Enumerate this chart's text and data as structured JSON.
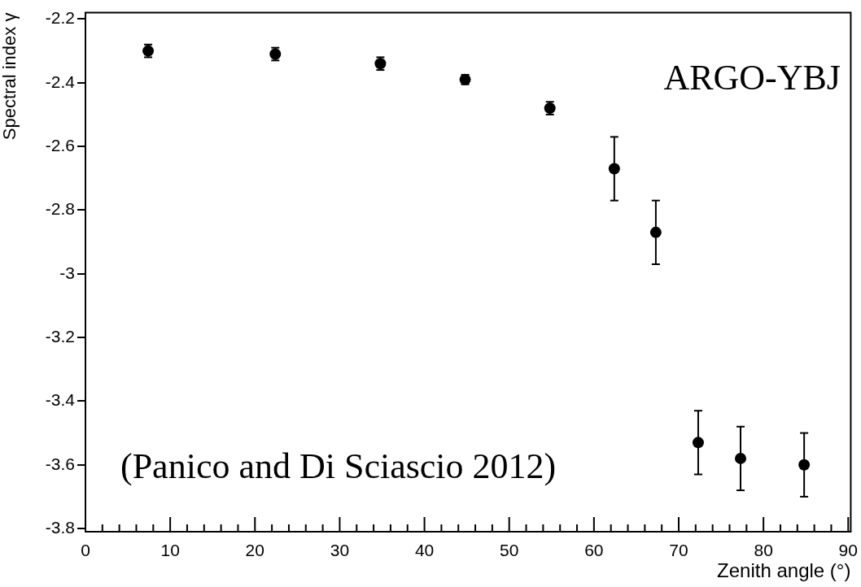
{
  "chart_data": {
    "type": "scatter",
    "xlabel": "Zenith angle (°)",
    "ylabel": "Spectral index γ",
    "annotations": [
      "ARGO-YBJ",
      "(Panico and Di Sciascio 2012)"
    ],
    "x": [
      7.4,
      22.4,
      34.8,
      44.8,
      54.8,
      62.4,
      67.3,
      72.3,
      77.3,
      84.8
    ],
    "series": [
      {
        "color": "#000000",
        "values": [
          -2.3,
          -2.31,
          -2.34,
          -2.39,
          -2.48,
          -2.67,
          -2.87,
          -3.53,
          -3.58,
          -3.6
        ],
        "errors": [
          0.02,
          0.02,
          0.02,
          0.015,
          0.02,
          0.1,
          0.1,
          0.1,
          0.1,
          0.1
        ]
      }
    ],
    "marker": "circle",
    "xlim": [
      0,
      90.3
    ],
    "xticks": [
      0,
      10,
      20,
      30,
      40,
      50,
      60,
      70,
      80,
      90
    ],
    "ylim": [
      -3.81,
      -2.18
    ],
    "yticks": [
      -3.8,
      -3.6,
      -3.4,
      -3.2,
      -3,
      -2.8,
      -2.6,
      -2.4,
      -2.2
    ]
  }
}
